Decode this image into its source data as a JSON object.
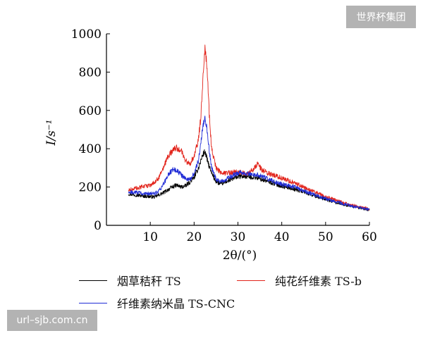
{
  "watermarks": {
    "top_right": "世界杯集团",
    "bottom_left": "url–sjb.com.cn"
  },
  "chart_data": {
    "type": "line",
    "title": "",
    "xlabel": "2θ/(°)",
    "ylabel": "I/s⁻¹",
    "xlim": [
      0,
      60
    ],
    "ylim": [
      0,
      1000
    ],
    "x_ticks": [
      10,
      20,
      30,
      40,
      50,
      60
    ],
    "y_ticks": [
      0,
      200,
      400,
      600,
      800,
      1000
    ],
    "grid": false,
    "legend_position": "bottom",
    "series": [
      {
        "name": "烟草秸秆 TS",
        "color": "#000000",
        "points": [
          [
            5,
            165
          ],
          [
            7,
            158
          ],
          [
            9,
            152
          ],
          [
            11,
            148
          ],
          [
            13,
            170
          ],
          [
            15,
            200
          ],
          [
            16,
            210
          ],
          [
            17,
            200
          ],
          [
            18,
            205
          ],
          [
            19,
            225
          ],
          [
            20,
            250
          ],
          [
            21,
            300
          ],
          [
            22,
            370
          ],
          [
            22.5,
            385
          ],
          [
            23,
            340
          ],
          [
            24,
            270
          ],
          [
            25,
            230
          ],
          [
            26,
            215
          ],
          [
            27,
            225
          ],
          [
            28,
            235
          ],
          [
            29,
            245
          ],
          [
            30,
            255
          ],
          [
            32,
            255
          ],
          [
            34,
            250
          ],
          [
            36,
            235
          ],
          [
            38,
            220
          ],
          [
            40,
            205
          ],
          [
            42,
            195
          ],
          [
            45,
            175
          ],
          [
            48,
            150
          ],
          [
            50,
            135
          ],
          [
            53,
            115
          ],
          [
            56,
            100
          ],
          [
            58,
            90
          ],
          [
            60,
            80
          ]
        ]
      },
      {
        "name": "纯花纤维素 TS-b",
        "color": "#e2231a",
        "points": [
          [
            5,
            185
          ],
          [
            7,
            195
          ],
          [
            9,
            205
          ],
          [
            10,
            210
          ],
          [
            11,
            225
          ],
          [
            12,
            250
          ],
          [
            13,
            300
          ],
          [
            14,
            355
          ],
          [
            15,
            390
          ],
          [
            16,
            405
          ],
          [
            17,
            390
          ],
          [
            18,
            340
          ],
          [
            19,
            320
          ],
          [
            20,
            360
          ],
          [
            21,
            450
          ],
          [
            21.5,
            560
          ],
          [
            22,
            750
          ],
          [
            22.5,
            945
          ],
          [
            23,
            800
          ],
          [
            23.5,
            560
          ],
          [
            24,
            400
          ],
          [
            25,
            300
          ],
          [
            26,
            275
          ],
          [
            27,
            270
          ],
          [
            28,
            275
          ],
          [
            30,
            280
          ],
          [
            32,
            270
          ],
          [
            33.5,
            290
          ],
          [
            34.5,
            320
          ],
          [
            35.5,
            290
          ],
          [
            37,
            270
          ],
          [
            39,
            255
          ],
          [
            41,
            240
          ],
          [
            43,
            220
          ],
          [
            45,
            200
          ],
          [
            48,
            170
          ],
          [
            50,
            150
          ],
          [
            53,
            125
          ],
          [
            56,
            105
          ],
          [
            58,
            95
          ],
          [
            60,
            85
          ]
        ]
      },
      {
        "name": "纤维素纳米晶 TS-CNC",
        "color": "#1f2bd6",
        "points": [
          [
            5,
            175
          ],
          [
            7,
            170
          ],
          [
            9,
            165
          ],
          [
            11,
            165
          ],
          [
            12,
            180
          ],
          [
            13,
            215
          ],
          [
            14,
            260
          ],
          [
            15,
            290
          ],
          [
            16,
            290
          ],
          [
            17,
            265
          ],
          [
            18,
            245
          ],
          [
            19,
            240
          ],
          [
            20,
            270
          ],
          [
            21,
            340
          ],
          [
            21.5,
            420
          ],
          [
            22,
            520
          ],
          [
            22.5,
            560
          ],
          [
            23,
            490
          ],
          [
            23.5,
            380
          ],
          [
            24,
            300
          ],
          [
            25,
            240
          ],
          [
            26,
            225
          ],
          [
            27,
            235
          ],
          [
            28,
            250
          ],
          [
            30,
            275
          ],
          [
            32,
            270
          ],
          [
            34,
            265
          ],
          [
            35,
            260
          ],
          [
            37,
            240
          ],
          [
            39,
            220
          ],
          [
            41,
            210
          ],
          [
            43,
            200
          ],
          [
            45,
            180
          ],
          [
            48,
            155
          ],
          [
            50,
            140
          ],
          [
            53,
            120
          ],
          [
            56,
            100
          ],
          [
            58,
            92
          ],
          [
            60,
            82
          ]
        ]
      }
    ]
  }
}
